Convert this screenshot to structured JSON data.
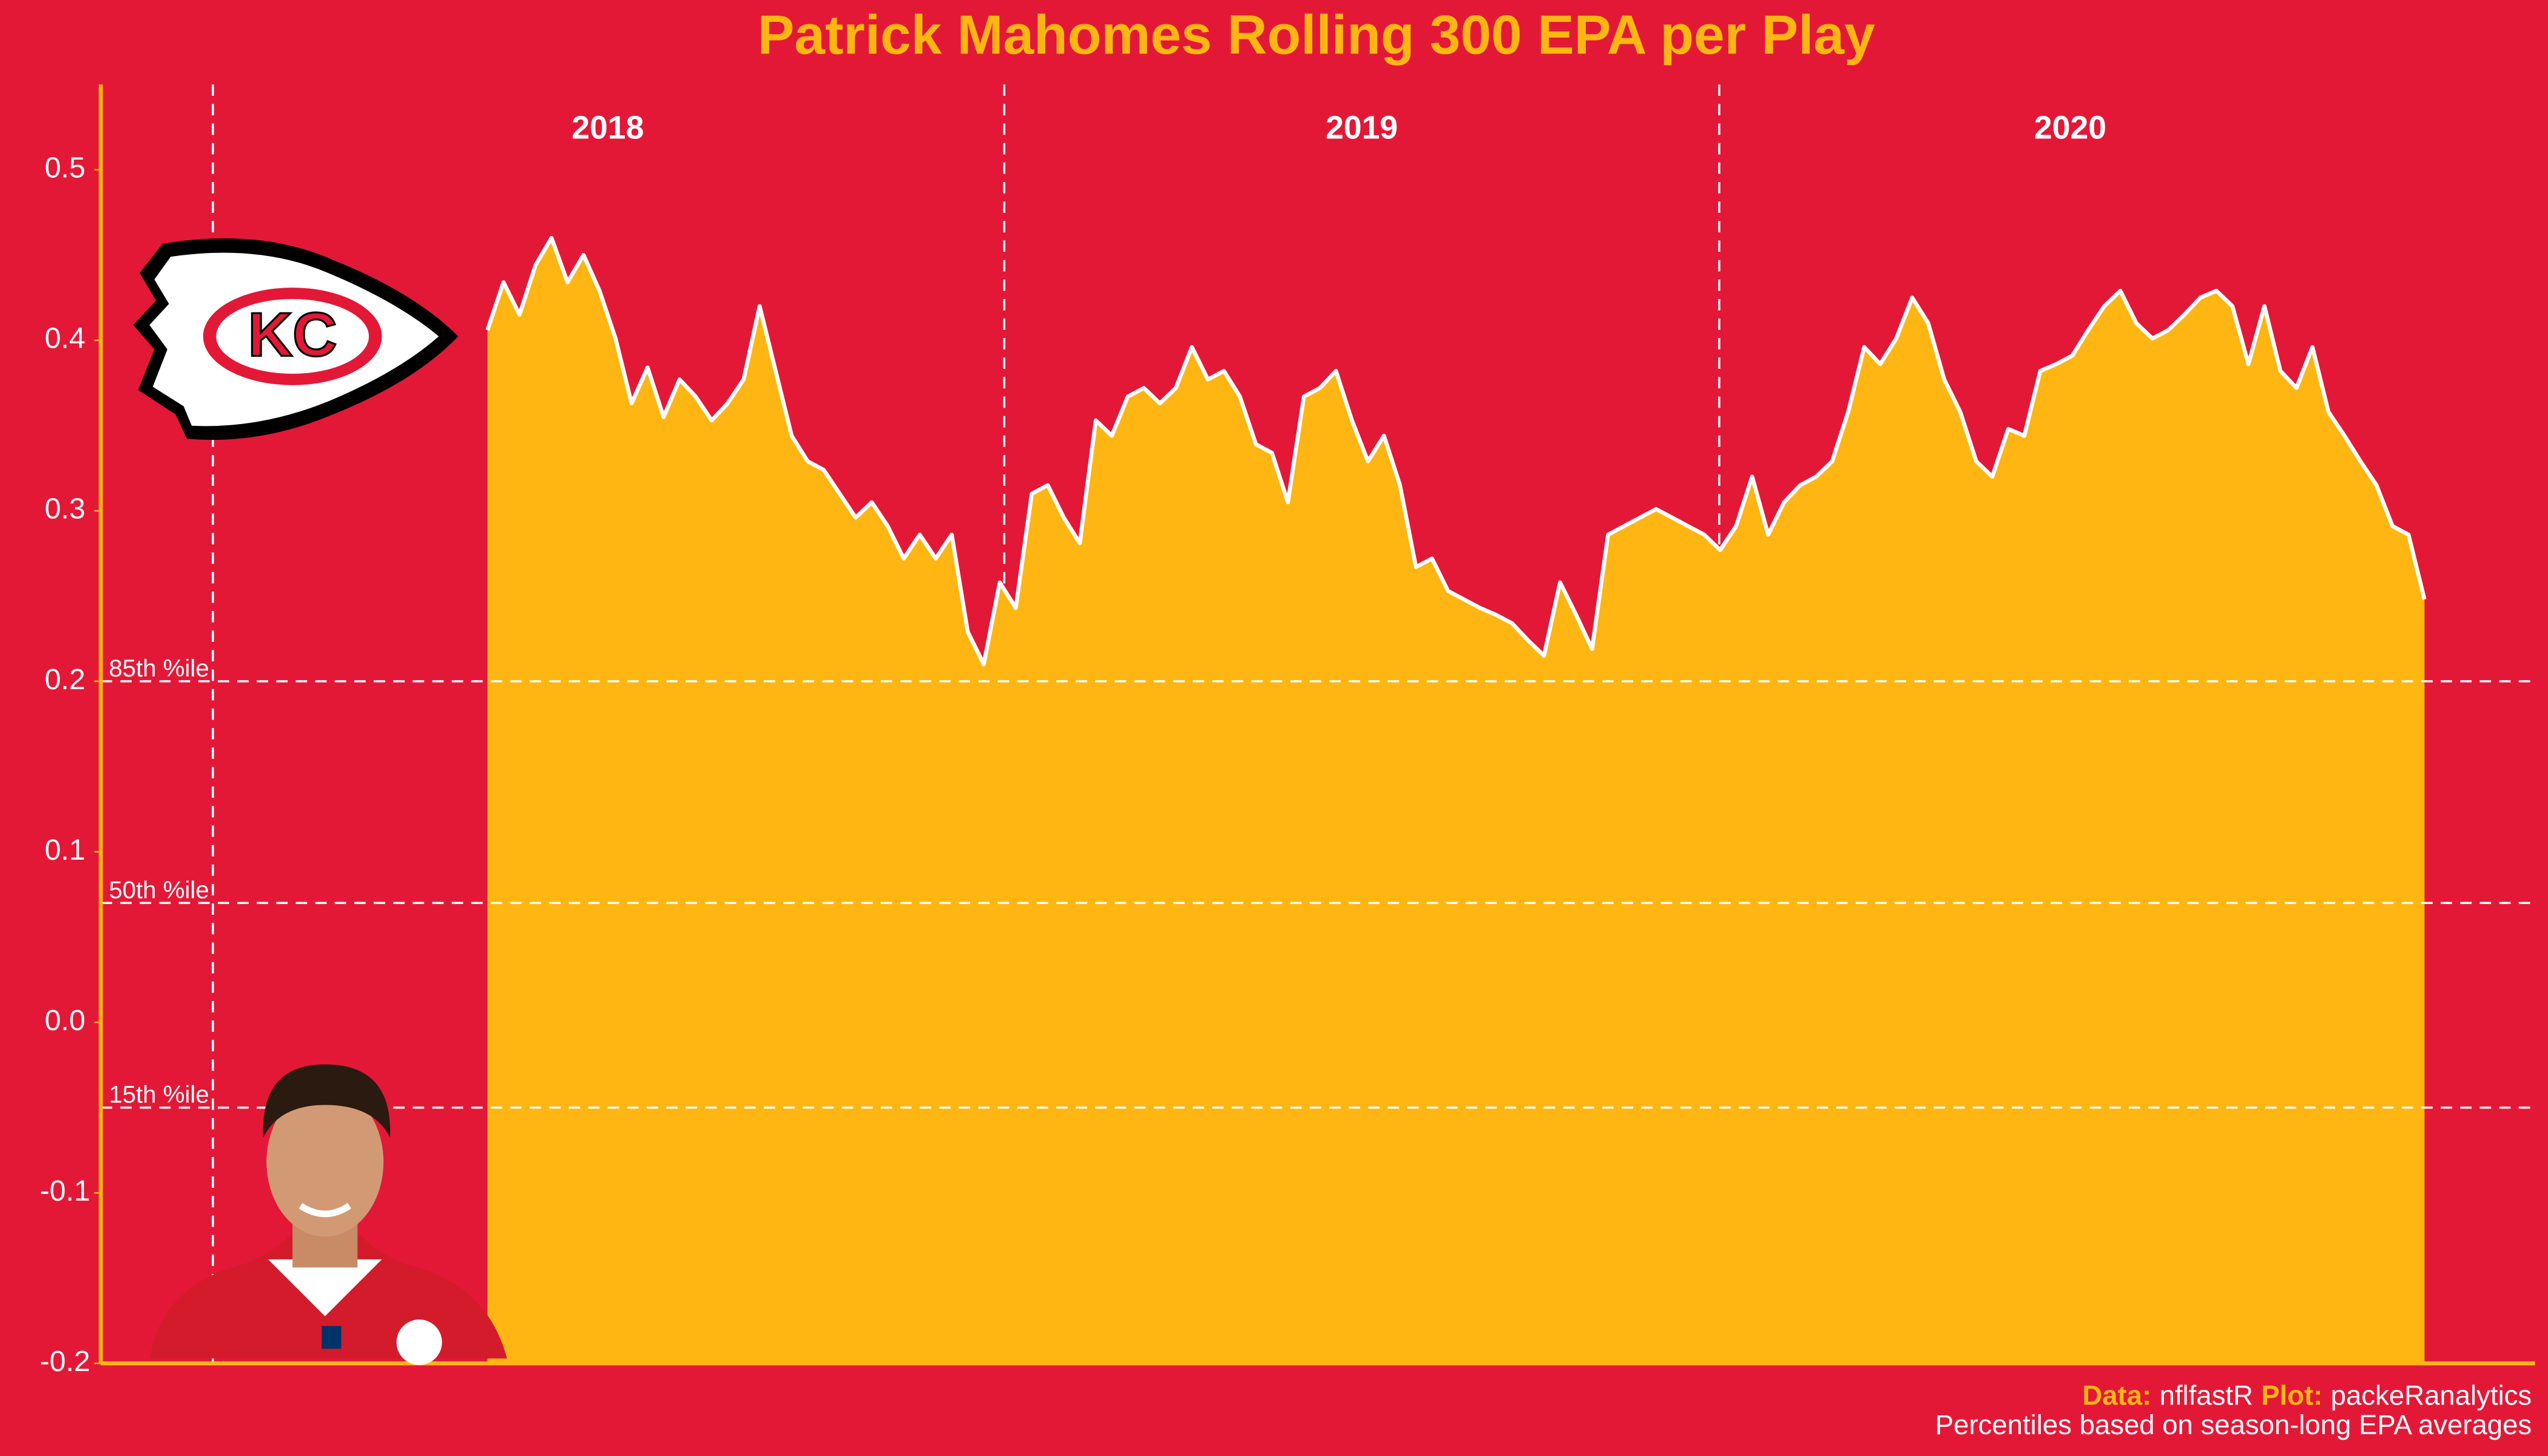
{
  "chart_data": {
    "type": "area",
    "title": "Patrick Mahomes Rolling 300 EPA per Play",
    "season_labels": [
      "2018",
      "2019",
      "2020"
    ],
    "color": "#FFB612",
    "line_color": "#FFFFFF",
    "ylim": [
      -0.2,
      0.55
    ],
    "yticks": [
      -0.2,
      -0.1,
      {
        "value": 0,
        "label": "0.0"
      },
      0.1,
      0.2,
      0.3,
      0.4,
      0.5
    ],
    "reference_lines": [
      {
        "label": "85th %ile",
        "value": 0.2
      },
      {
        "label": "50th %ile",
        "value": 0.07
      },
      {
        "label": "15th %ile",
        "value": -0.05
      }
    ],
    "values": [
      0.406,
      0.434,
      0.415,
      0.444,
      0.46,
      0.434,
      0.45,
      0.429,
      0.401,
      0.363,
      0.384,
      0.355,
      0.377,
      0.367,
      0.353,
      0.363,
      0.377,
      0.42,
      0.382,
      0.344,
      0.329,
      0.324,
      0.31,
      0.296,
      0.305,
      0.291,
      0.272,
      0.286,
      0.272,
      0.286,
      0.229,
      0.21,
      0.258,
      0.243,
      0.31,
      0.315,
      0.296,
      0.281,
      0.353,
      0.344,
      0.367,
      0.372,
      0.363,
      0.372,
      0.396,
      0.377,
      0.382,
      0.367,
      0.339,
      0.334,
      0.305,
      0.367,
      0.372,
      0.382,
      0.353,
      0.329,
      0.344,
      0.315,
      0.267,
      0.272,
      0.253,
      0.248,
      0.243,
      0.239,
      0.234,
      0.224,
      0.215,
      0.258,
      0.239,
      0.219,
      0.286,
      0.291,
      0.296,
      0.301,
      0.296,
      0.291,
      0.286,
      0.277,
      0.291,
      0.32,
      0.286,
      0.305,
      0.315,
      0.32,
      0.329,
      0.358,
      0.396,
      0.386,
      0.401,
      0.425,
      0.41,
      0.377,
      0.358,
      0.329,
      0.32,
      0.348,
      0.344,
      0.382,
      0.386,
      0.391,
      0.406,
      0.42,
      0.429,
      0.41,
      0.401,
      0.406,
      0.415,
      0.425,
      0.429,
      0.42,
      0.386,
      0.42,
      0.382,
      0.372,
      0.396,
      0.358,
      0.344,
      0.329,
      0.315,
      0.291,
      0.286,
      0.248
    ],
    "caption": {
      "data_label": "Data:",
      "data_source": "nflfastR",
      "plot_label": "Plot:",
      "plot_author": "packeRanalytics",
      "note": "Percentiles based on season-long EPA averages"
    }
  }
}
